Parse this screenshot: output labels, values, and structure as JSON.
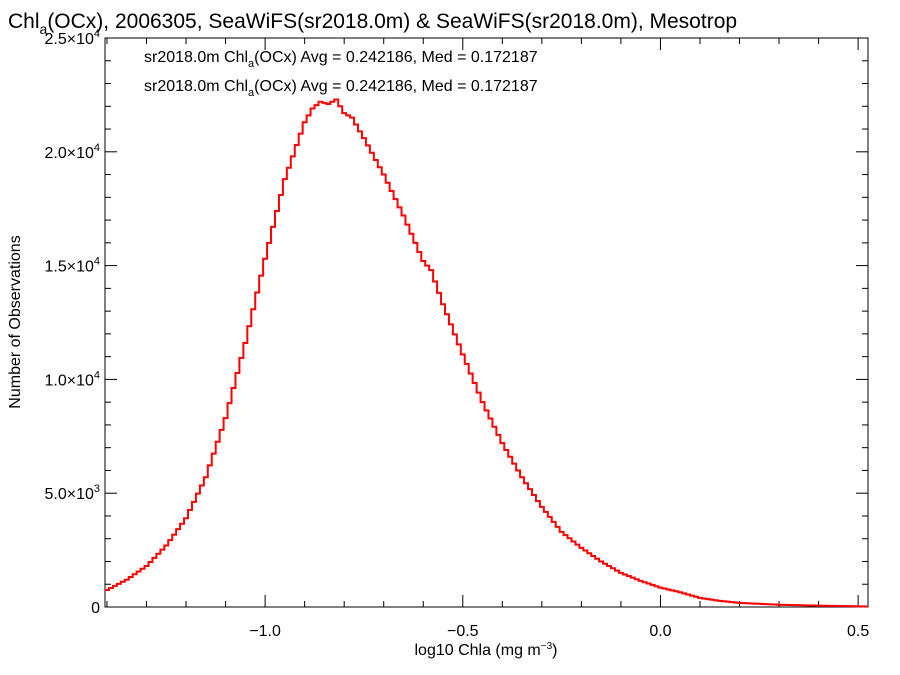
{
  "chart_data": {
    "type": "line",
    "title": {
      "pre": "Chl",
      "sub": "a",
      "post": "(OCx), 2006305, SeaWiFS(sr2018.0m) & SeaWiFS(sr2018.0m), Mesotrop"
    },
    "xlabel": {
      "pre": "log10 Chla (mg m",
      "sup": "−3",
      "post": ")"
    },
    "ylabel": "Number of Observations",
    "xlim": [
      -1.405,
      0.525
    ],
    "ylim": [
      0,
      25000
    ],
    "xticks": [
      {
        "value": -1.0,
        "label": "−1.0"
      },
      {
        "value": -0.5,
        "label": "−0.5"
      },
      {
        "value": 0.0,
        "label": "0.0"
      },
      {
        "value": 0.5,
        "label": "0.5"
      }
    ],
    "yticks": [
      {
        "value": 0,
        "label": "0",
        "sup": ""
      },
      {
        "value": 5000,
        "label": "5.0×10",
        "sup": "3"
      },
      {
        "value": 10000,
        "label": "1.0×10",
        "sup": "4"
      },
      {
        "value": 15000,
        "label": "1.5×10",
        "sup": "4"
      },
      {
        "value": 20000,
        "label": "2.0×10",
        "sup": "4"
      },
      {
        "value": 25000,
        "label": "2.5×10",
        "sup": "4"
      }
    ],
    "legend": [
      {
        "pre": "sr2018.0m Chl",
        "sub": "a",
        "post": "(OCx) Avg = 0.242186, Med = 0.172187",
        "color": "#000000"
      },
      {
        "pre": "sr2018.0m Chl",
        "sub": "a",
        "post": "(OCx) Avg = 0.242186, Med = 0.172187",
        "color": "#ff0000"
      }
    ],
    "legend_position": "top-left",
    "series_color": "#ff0000",
    "series": [
      {
        "x": [
          -1.405,
          -1.35,
          -1.3,
          -1.25,
          -1.2,
          -1.15,
          -1.1,
          -1.05,
          -1.0,
          -0.95,
          -0.9,
          -0.88,
          -0.86,
          -0.84,
          -0.82,
          -0.8,
          -0.78,
          -0.75,
          -0.7,
          -0.65,
          -0.6,
          -0.58,
          -0.55,
          -0.5,
          -0.45,
          -0.4,
          -0.35,
          -0.3,
          -0.25,
          -0.2,
          -0.15,
          -0.1,
          -0.05,
          0.0,
          0.05,
          0.1,
          0.15,
          0.2,
          0.3,
          0.4,
          0.5,
          0.525
        ],
        "y": [
          700,
          1200,
          1800,
          2700,
          3900,
          5700,
          8300,
          11600,
          15300,
          18800,
          21300,
          21900,
          22200,
          22100,
          22300,
          21700,
          21500,
          20600,
          19000,
          17200,
          15200,
          14800,
          13300,
          11100,
          9000,
          7200,
          5700,
          4400,
          3300,
          2600,
          2000,
          1500,
          1150,
          850,
          650,
          400,
          270,
          180,
          100,
          60,
          30,
          20
        ]
      }
    ]
  }
}
